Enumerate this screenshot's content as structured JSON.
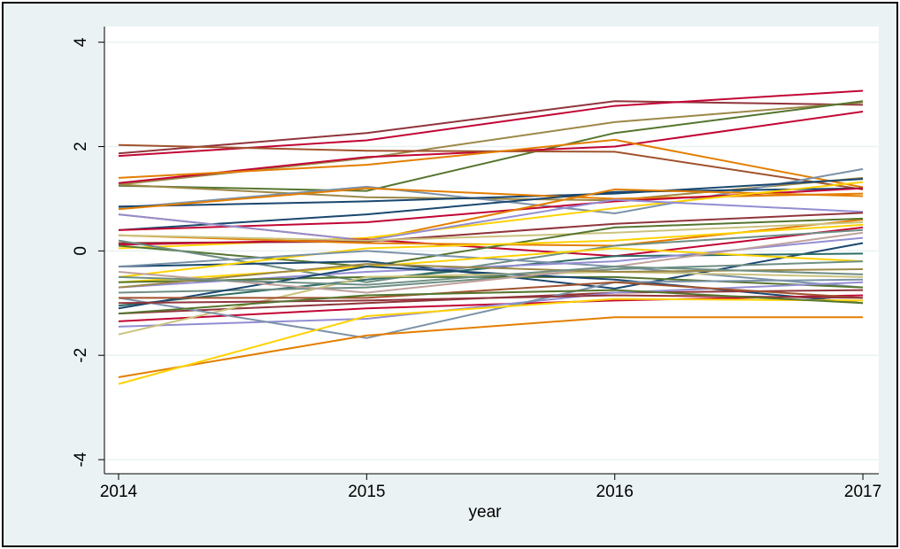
{
  "chart_data": {
    "type": "line",
    "x_label": "year",
    "x": [
      2014,
      2015,
      2016,
      2017
    ],
    "xlim": [
      2013.943,
      2017.064
    ],
    "xticks": [
      2014,
      2015,
      2016,
      2017
    ],
    "ylim": [
      -4.27,
      4.3
    ],
    "yticks": [
      -4,
      -2,
      0,
      2,
      4
    ],
    "grid": true,
    "series": [
      {
        "color": "#90353b",
        "values": [
          1.87,
          2.26,
          2.87,
          2.8
        ]
      },
      {
        "color": "#c10534",
        "values": [
          1.82,
          2.12,
          2.78,
          3.07
        ]
      },
      {
        "color": "#9c8847",
        "values": [
          1.27,
          1.78,
          2.47,
          2.85
        ]
      },
      {
        "color": "#55752f",
        "values": [
          1.25,
          1.15,
          2.26,
          2.87
        ]
      },
      {
        "color": "#c10534",
        "values": [
          1.3,
          1.8,
          2.0,
          2.67
        ]
      },
      {
        "color": "#a0522d",
        "values": [
          2.03,
          1.92,
          1.9,
          1.18
        ]
      },
      {
        "color": "#e37e00",
        "values": [
          1.4,
          1.65,
          2.13,
          1.22
        ]
      },
      {
        "color": "#9c8847",
        "values": [
          1.27,
          1.03,
          0.97,
          1.4
        ]
      },
      {
        "color": "#7b92a8",
        "values": [
          0.82,
          1.23,
          0.72,
          1.57
        ]
      },
      {
        "color": "#1a476f",
        "values": [
          0.85,
          0.95,
          1.1,
          1.38
        ]
      },
      {
        "color": "#e37e00",
        "values": [
          0.8,
          1.2,
          1.0,
          1.1
        ]
      },
      {
        "color": "#1a476f",
        "values": [
          0.4,
          0.7,
          1.13,
          1.2
        ]
      },
      {
        "color": "#c10534",
        "values": [
          0.4,
          0.55,
          0.95,
          1.2
        ]
      },
      {
        "color": "#e37e00",
        "values": [
          0.7,
          0.2,
          1.18,
          1.05
        ]
      },
      {
        "color": "#ffd200",
        "values": [
          0.05,
          0.25,
          0.82,
          1.32
        ]
      },
      {
        "color": "#938dd2",
        "values": [
          0.7,
          0.2,
          0.98,
          0.75
        ]
      },
      {
        "color": "#90353b",
        "values": [
          0.15,
          0.18,
          0.52,
          0.73
        ]
      },
      {
        "color": "#c10534",
        "values": [
          0.12,
          0.22,
          -0.1,
          0.45
        ]
      },
      {
        "color": "#e37e00",
        "values": [
          0.3,
          0.15,
          0.1,
          0.6
        ]
      },
      {
        "color": "#cac27e",
        "values": [
          0.3,
          0.2,
          0.35,
          0.55
        ]
      },
      {
        "color": "#55752f",
        "values": [
          0.1,
          -0.3,
          0.45,
          0.62
        ]
      },
      {
        "color": "#6e8e84",
        "values": [
          0.2,
          -0.6,
          0.1,
          0.4
        ]
      },
      {
        "color": "#1a476f",
        "values": [
          -0.3,
          -0.2,
          -0.72,
          0.15
        ]
      },
      {
        "color": "#ffd200",
        "values": [
          -0.5,
          0.05,
          0.2,
          0.5
        ]
      },
      {
        "color": "#2d6d66",
        "values": [
          -1.05,
          -0.55,
          -0.1,
          -0.05
        ]
      },
      {
        "color": "#7b92a8",
        "values": [
          -0.3,
          0.0,
          -0.3,
          -0.7
        ]
      },
      {
        "color": "#938dd2",
        "values": [
          -0.7,
          -0.4,
          -0.2,
          0.25
        ]
      },
      {
        "color": "#ffd200",
        "values": [
          -0.6,
          -0.3,
          0.05,
          -0.2
        ]
      },
      {
        "color": "#6e8e84",
        "values": [
          -0.8,
          -0.7,
          -0.35,
          -0.2
        ]
      },
      {
        "color": "#55752f",
        "values": [
          -0.6,
          -0.5,
          -0.5,
          -0.7
        ]
      },
      {
        "color": "#1a476f",
        "values": [
          -1.1,
          -0.3,
          -0.55,
          -1.0
        ]
      },
      {
        "color": "#90353b",
        "values": [
          -1.2,
          -1.0,
          -0.8,
          -0.75
        ]
      },
      {
        "color": "#c10534",
        "values": [
          -1.35,
          -1.1,
          -0.95,
          -0.85
        ]
      },
      {
        "color": "#938dd2",
        "values": [
          -1.45,
          -1.3,
          -0.8,
          -0.6
        ]
      },
      {
        "color": "#cac27e",
        "values": [
          -1.6,
          -0.5,
          -0.4,
          -0.5
        ]
      },
      {
        "color": "#7b92a8",
        "values": [
          -0.9,
          -1.67,
          -0.6,
          -0.55
        ]
      },
      {
        "color": "#e37e00",
        "values": [
          -2.42,
          -1.62,
          -1.27,
          -1.27
        ]
      },
      {
        "color": "#ffd200",
        "values": [
          -2.55,
          -1.25,
          -0.92,
          -0.95
        ]
      },
      {
        "color": "#a0522d",
        "values": [
          -0.9,
          -0.9,
          -0.6,
          -0.9
        ]
      },
      {
        "color": "#bfa19c",
        "values": [
          -0.4,
          -0.8,
          -0.3,
          0.35
        ]
      },
      {
        "color": "#9c8847",
        "values": [
          -0.7,
          -0.25,
          -0.4,
          -0.35
        ]
      },
      {
        "color": "#90353b",
        "values": [
          -1.0,
          -0.95,
          -0.85,
          -0.9
        ]
      },
      {
        "color": "#55752f",
        "values": [
          -1.2,
          -0.85,
          -0.75,
          -1.0
        ]
      },
      {
        "color": "#6e8e84",
        "values": [
          -0.5,
          -0.65,
          -0.3,
          -0.45
        ]
      }
    ]
  }
}
